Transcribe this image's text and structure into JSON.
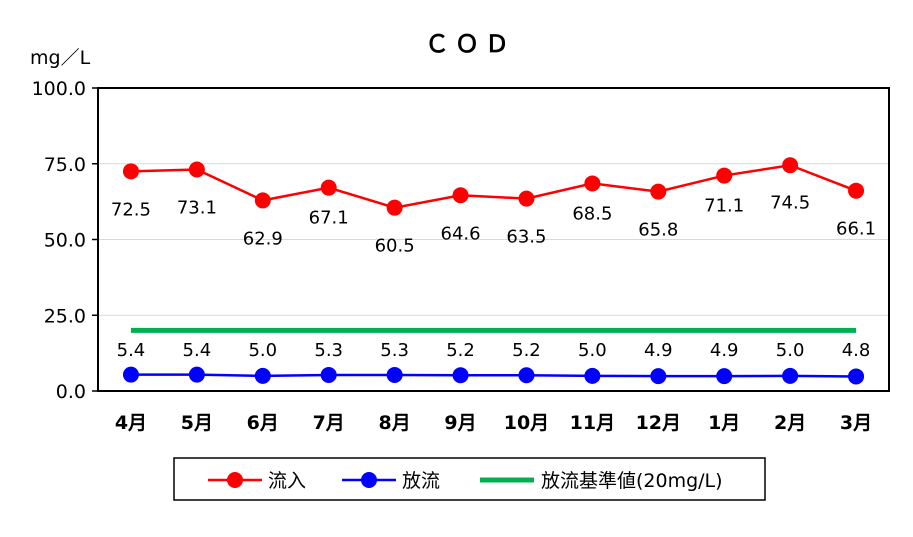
{
  "chart_data": {
    "type": "line",
    "title": "ＣＯＤ",
    "ylabel": "mg／L",
    "xlabel": "",
    "ylim": [
      0,
      100
    ],
    "yticks": [
      "0.0",
      "25.0",
      "50.0",
      "75.0",
      "100.0"
    ],
    "categories": [
      "4月",
      "5月",
      "6月",
      "7月",
      "8月",
      "9月",
      "10月",
      "11月",
      "12月",
      "1月",
      "2月",
      "3月"
    ],
    "series": [
      {
        "name": "流入",
        "color": "#ff0000",
        "values": [
          72.5,
          73.1,
          62.9,
          67.1,
          60.5,
          64.6,
          63.5,
          68.5,
          65.8,
          71.1,
          74.5,
          66.1
        ],
        "labels": [
          "72.5",
          "73.1",
          "62.9",
          "67.1",
          "60.5",
          "64.6",
          "63.5",
          "68.5",
          "65.8",
          "71.1",
          "74.5",
          "66.1"
        ]
      },
      {
        "name": "放流",
        "color": "#0000ff",
        "values": [
          5.4,
          5.4,
          5.0,
          5.3,
          5.3,
          5.2,
          5.2,
          5.0,
          4.9,
          4.9,
          5.0,
          4.8
        ],
        "labels": [
          "5.4",
          "5.4",
          "5.0",
          "5.3",
          "5.3",
          "5.2",
          "5.2",
          "5.0",
          "4.9",
          "4.9",
          "5.0",
          "4.8"
        ]
      },
      {
        "name": "放流基準値(20mg/L)",
        "color": "#00b050",
        "values": [
          20,
          20,
          20,
          20,
          20,
          20,
          20,
          20,
          20,
          20,
          20,
          20
        ]
      }
    ],
    "grid": true,
    "legend": "bottom"
  }
}
